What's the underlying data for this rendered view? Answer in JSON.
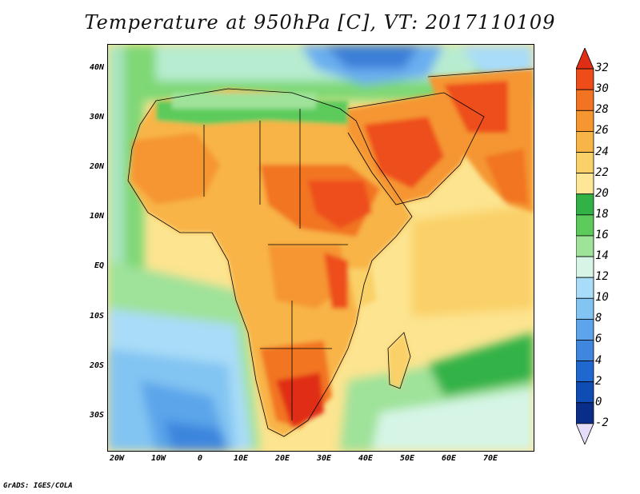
{
  "title": "Temperature at 950hPa [C], VT: 2017110109",
  "credit": "GrADS: IGES/COLA",
  "map": {
    "projection": "lat-lon",
    "lon_range": [
      -23,
      80
    ],
    "lat_range": [
      -37,
      45
    ],
    "lat_ticks": [
      "40N",
      "30N",
      "20N",
      "10N",
      "EQ",
      "10S",
      "20S",
      "30S"
    ],
    "lon_ticks": [
      "20W",
      "10W",
      "0",
      "10E",
      "20E",
      "30E",
      "40E",
      "50E",
      "60E",
      "70E"
    ],
    "field": "Temperature at 950hPa",
    "units": "C"
  },
  "colorbar": {
    "levels": [
      "32",
      "30",
      "28",
      "26",
      "24",
      "22",
      "20",
      "18",
      "16",
      "14",
      "12",
      "10",
      "8",
      "6",
      "4",
      "2",
      "0",
      "-2"
    ],
    "colors": [
      "#e02e14",
      "#ee4d1a",
      "#f27422",
      "#f59630",
      "#f8b446",
      "#fad068",
      "#fde796",
      "#32b246",
      "#5ccb5c",
      "#9fe29a",
      "#d6f5e6",
      "#a9dcf8",
      "#82c4f2",
      "#5ca5ea",
      "#3e86de",
      "#1e68cf",
      "#0f4db5",
      "#0a2d8a",
      "#e6ddf9"
    ]
  }
}
